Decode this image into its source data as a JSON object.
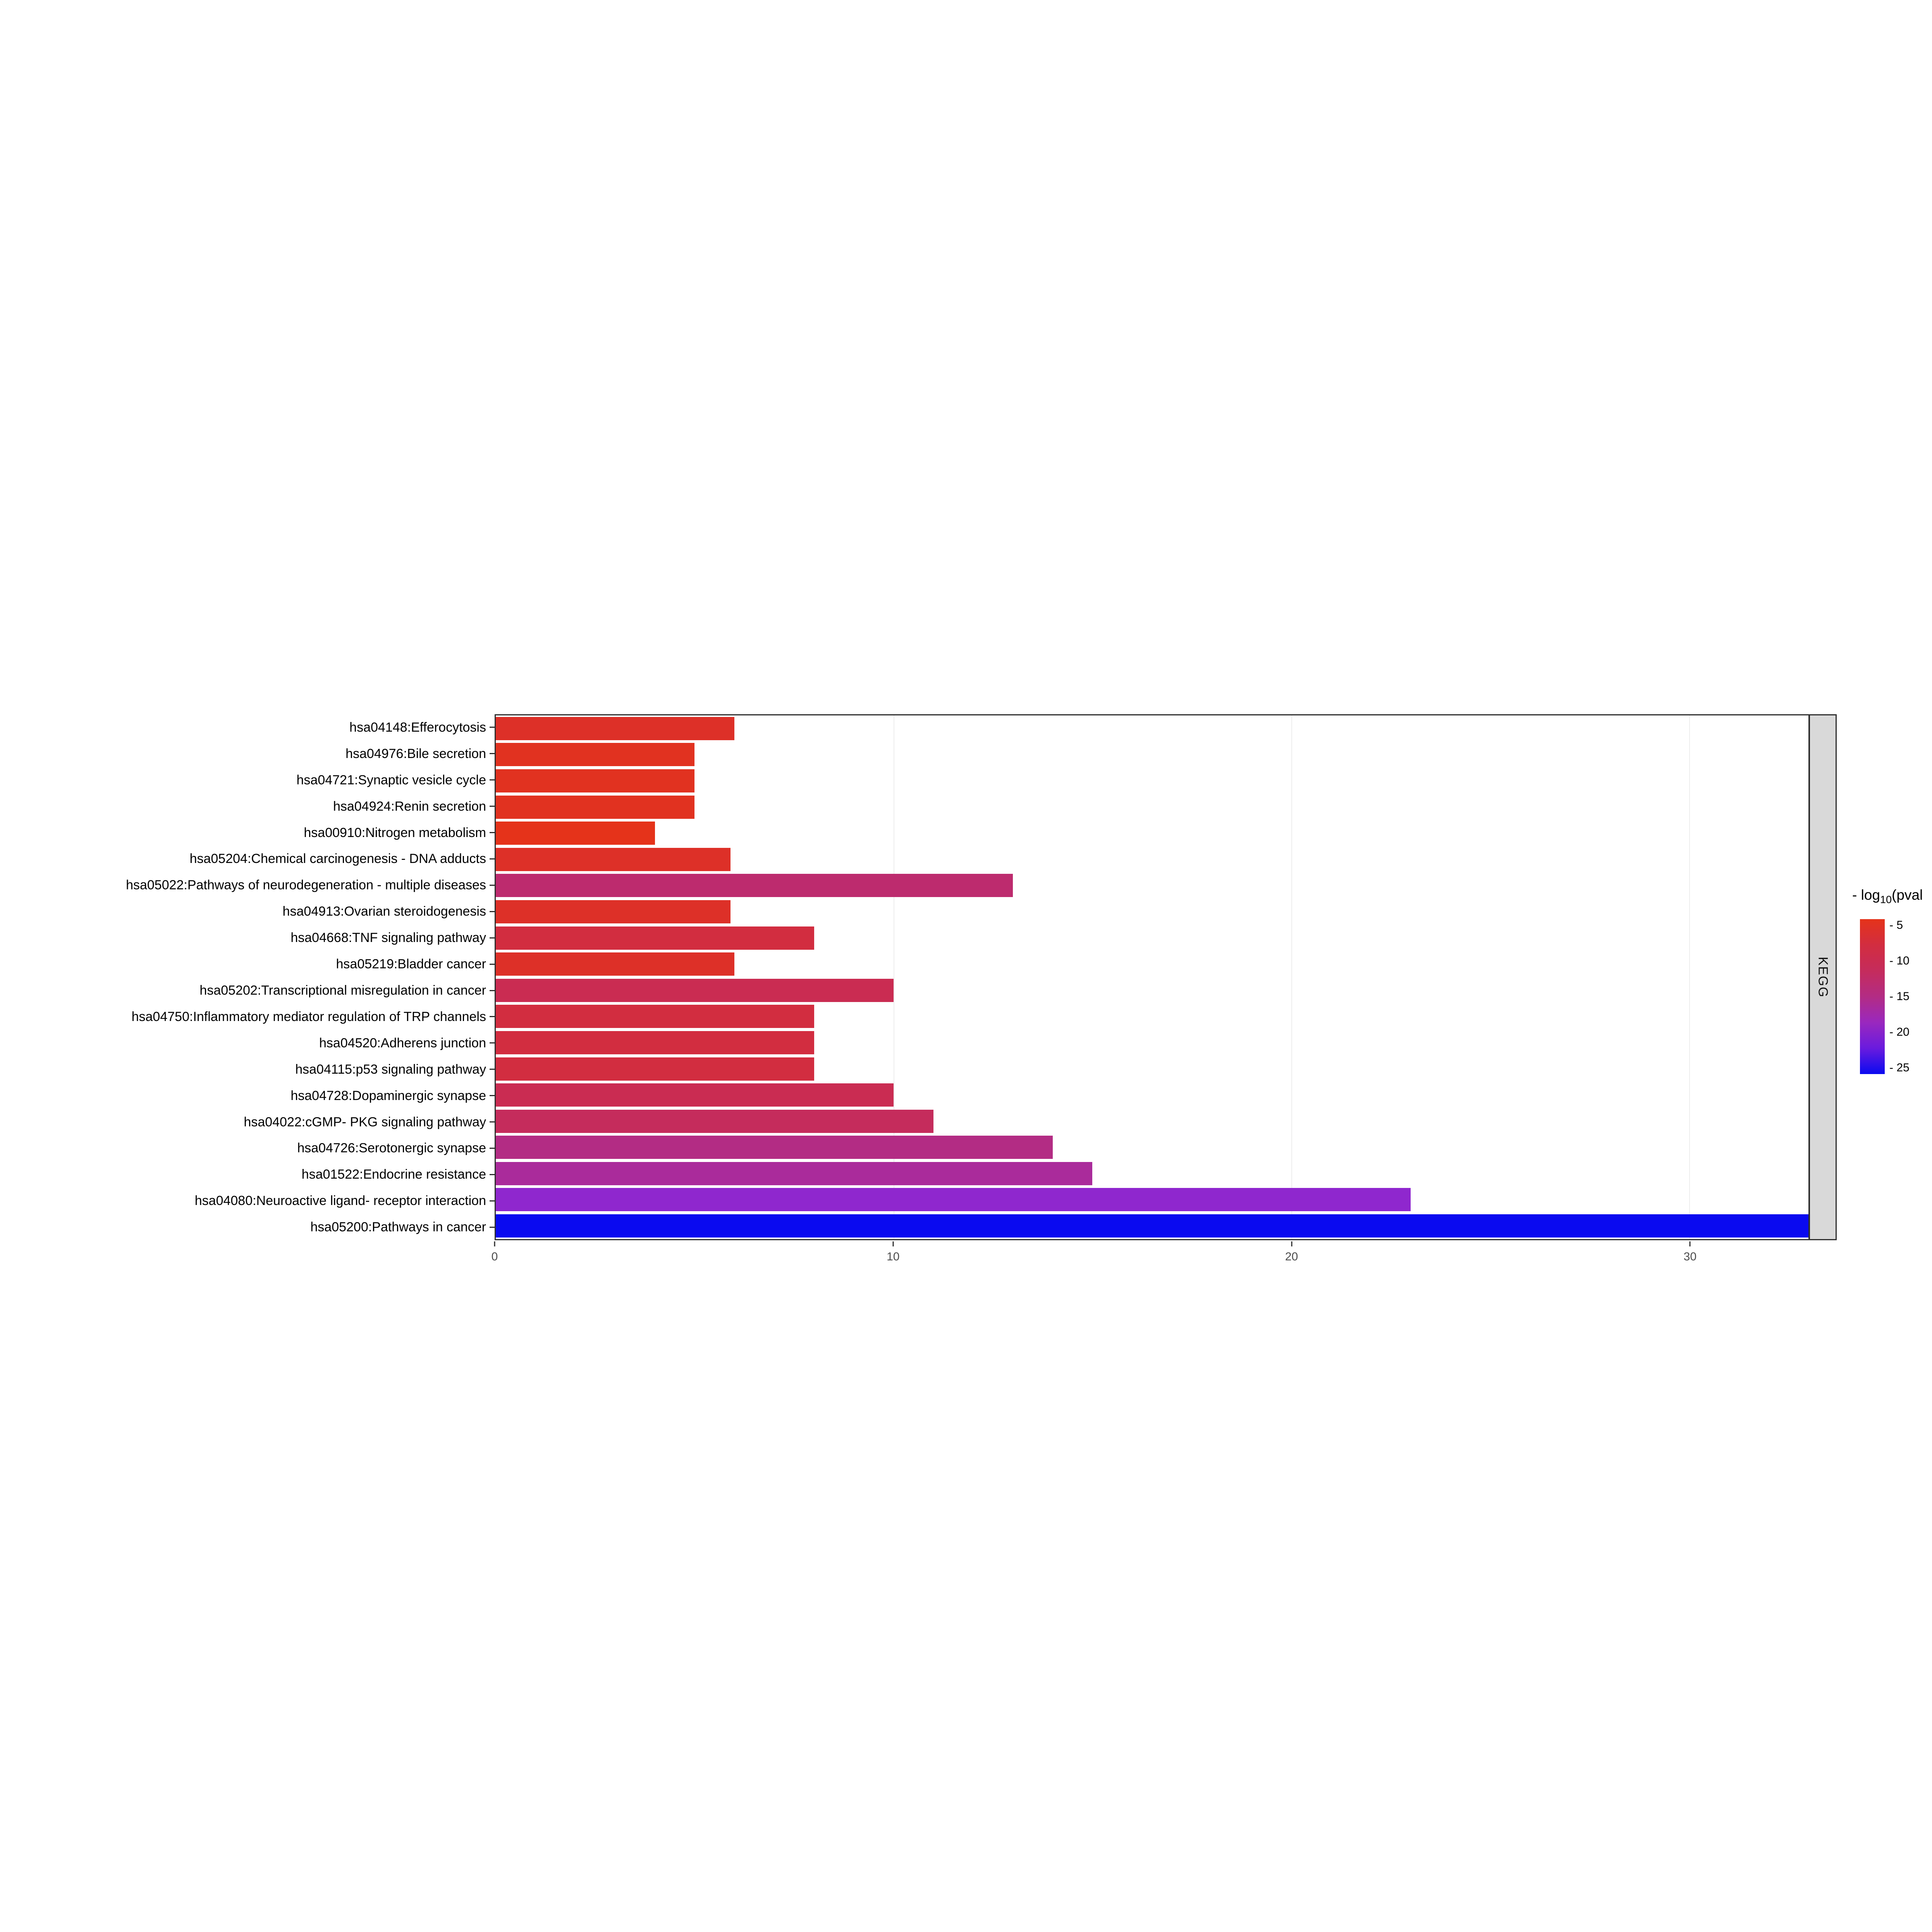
{
  "figure": {
    "facet_label": "KEGG",
    "legend": {
      "title_prefix": "- log",
      "title_sub": "10",
      "title_suffix": "(pval",
      "ticks": [
        "- 5",
        "- 10",
        "- 15",
        "- 20",
        "- 25"
      ],
      "gradient_stops": [
        "#E5331A",
        "#D22D40",
        "#C52C5C",
        "#B32C84",
        "#9A28BE",
        "#6A1BDE",
        "#0A0AF0"
      ]
    }
  },
  "chart_data": {
    "type": "bar",
    "orientation": "horizontal",
    "title": "",
    "xlabel": "",
    "ylabel": "",
    "facet": "KEGG",
    "xlim": [
      0,
      33
    ],
    "x_ticks": [
      0,
      10,
      20,
      30
    ],
    "grid": "major-vertical",
    "legend_position": "right",
    "color_scale": {
      "label": "- log10(pval",
      "low_value": 5,
      "high_value": 25,
      "low_color": "#E5331A",
      "high_color": "#0A0AF0",
      "colorbar_ticks": [
        5,
        10,
        15,
        20,
        25
      ]
    },
    "categories": [
      "hsa04148:Efferocytosis",
      "hsa04976:Bile secretion",
      "hsa04721:Synaptic vesicle cycle",
      "hsa04924:Renin secretion",
      "hsa00910:Nitrogen metabolism",
      "hsa05204:Chemical carcinogenesis - DNA adducts",
      "hsa05022:Pathways of neurodegeneration - multiple diseases",
      "hsa04913:Ovarian steroidogenesis",
      "hsa04668:TNF signaling pathway",
      "hsa05219:Bladder cancer",
      "hsa05202:Transcriptional misregulation in cancer",
      "hsa04750:Inflammatory mediator regulation of TRP channels",
      "hsa04520:Adherens junction",
      "hsa04115:p53 signaling pathway",
      "hsa04728:Dopaminergic synapse",
      "hsa04022:cGMP- PKG signaling pathway",
      "hsa04726:Serotonergic synapse",
      "hsa01522:Endocrine resistance",
      "hsa04080:Neuroactive ligand- receptor interaction",
      "hsa05200:Pathways in cancer"
    ],
    "values": [
      6,
      5,
      5,
      5,
      4,
      5.9,
      13,
      5.9,
      8,
      6,
      10,
      8,
      8,
      8,
      10,
      11,
      14,
      15,
      23,
      33
    ],
    "bar_colors": [
      "#DD3028",
      "#E13220",
      "#E13220",
      "#E13220",
      "#E5331A",
      "#DD3028",
      "#BD2B6E",
      "#DD3028",
      "#D22D40",
      "#DD3028",
      "#CA2C52",
      "#D22D40",
      "#D22D40",
      "#D22D40",
      "#CA2C52",
      "#C52C5C",
      "#B32C84",
      "#AA2B9B",
      "#8F27CE",
      "#0A0AF0"
    ]
  }
}
